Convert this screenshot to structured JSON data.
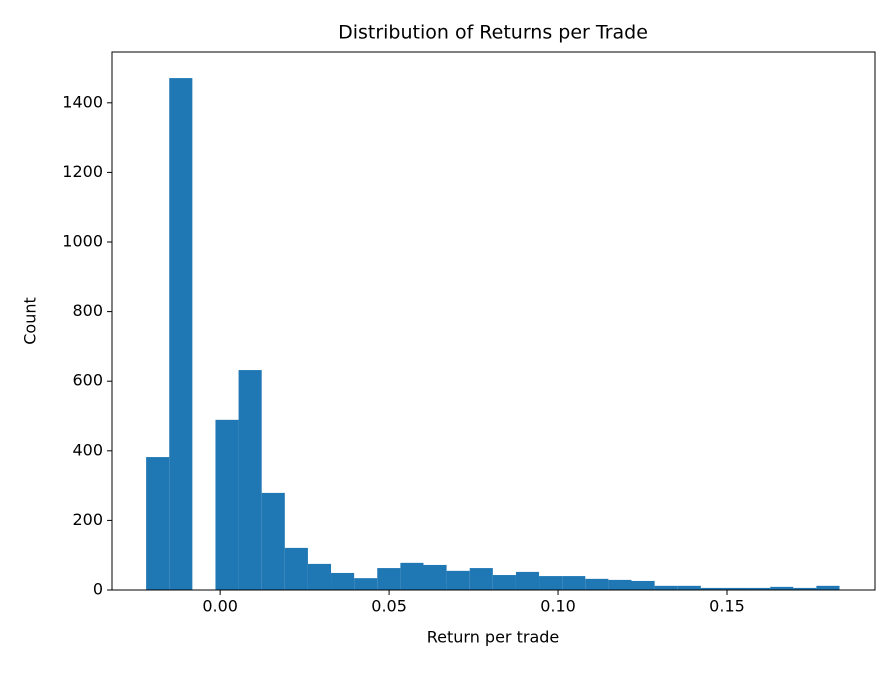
{
  "chart_data": {
    "type": "histogram",
    "title": "Distribution of Returns per Trade",
    "x_label": "Return per trade",
    "y_label": "Count",
    "bins": [
      -0.0219,
      -0.01506,
      -0.00822,
      -0.00138,
      0.00546,
      0.0123,
      0.01914,
      0.02598,
      0.03282,
      0.03966,
      0.0465,
      0.05334,
      0.06018,
      0.06702,
      0.07386,
      0.0807,
      0.08754,
      0.09438,
      0.10122,
      0.10806,
      0.1149,
      0.12174,
      0.12858,
      0.13542,
      0.14226,
      0.1491,
      0.15594,
      0.16278,
      0.16962,
      0.17646,
      0.1833
    ],
    "values": [
      382,
      1471,
      0,
      489,
      632,
      279,
      121,
      75,
      49,
      34,
      63,
      78,
      72,
      55,
      63,
      43,
      52,
      40,
      40,
      32,
      29,
      26,
      12,
      12,
      6,
      6,
      6,
      9,
      6,
      12
    ],
    "color": "#1f77b4",
    "xlim": [
      -0.032,
      0.1938
    ],
    "ylim": [
      0,
      1546
    ],
    "xticks": [
      {
        "value": 0,
        "label": "0.00"
      },
      {
        "value": 0.05,
        "label": "0.05"
      },
      {
        "value": 0.1,
        "label": "0.10"
      },
      {
        "value": 0.15,
        "label": "0.15"
      }
    ],
    "yticks": [
      0,
      200,
      400,
      600,
      800,
      1000,
      1200,
      1400
    ]
  }
}
